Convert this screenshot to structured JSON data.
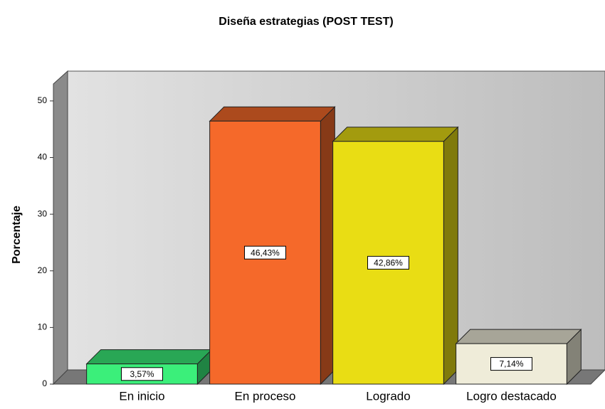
{
  "chart_data": {
    "type": "bar3d",
    "title": "Diseña estrategias (POST TEST)",
    "y_label": "Porcentaje",
    "categories": [
      "En inicio",
      "En proceso",
      "Logrado",
      "Logro destacado"
    ],
    "values": [
      3.57,
      46.43,
      42.86,
      7.14
    ],
    "value_labels": [
      "3,57%",
      "46,43%",
      "42,86%",
      "7,14%"
    ],
    "colors": [
      "#3bef7a",
      "#f5692a",
      "#e9dd14",
      "#efecd9"
    ],
    "ylim": [
      0,
      53
    ],
    "yticks": [
      0,
      10,
      20,
      30,
      40,
      50
    ],
    "grid": false
  }
}
